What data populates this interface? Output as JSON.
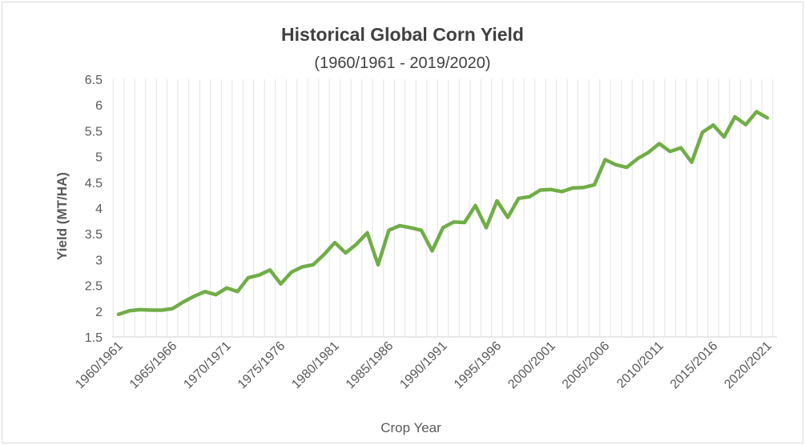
{
  "chart_data": {
    "type": "line",
    "title": "Historical Global Corn Yield",
    "subtitle": "(1960/1961 - 2019/2020)",
    "xlabel": "Crop Year",
    "ylabel": "Yield  (MT/HA)",
    "ylim": [
      1.5,
      6.5
    ],
    "yticks": [
      "1.5",
      "2",
      "2.5",
      "3",
      "3.5",
      "4",
      "4.5",
      "5",
      "5.5",
      "6",
      "6.5"
    ],
    "xticks": [
      "1960/1961",
      "1965/1966",
      "1970/1971",
      "1975/1976",
      "1980/1981",
      "1985/1986",
      "1990/1991",
      "1995/1996",
      "2000/2001",
      "2005/2006",
      "2010/2011",
      "2015/2016",
      "2020/2021"
    ],
    "grid": "vertical",
    "line_color": "#70ad47",
    "series": [
      {
        "x": [
          "1960/1961",
          "1961/1962",
          "1962/1963",
          "1963/1964",
          "1964/1965",
          "1965/1966",
          "1966/1967",
          "1967/1968",
          "1968/1969",
          "1969/1970",
          "1970/1971",
          "1971/1972",
          "1972/1973",
          "1973/1974",
          "1974/1975",
          "1975/1976",
          "1976/1977",
          "1977/1978",
          "1978/1979",
          "1979/1980",
          "1980/1981",
          "1981/1982",
          "1982/1983",
          "1983/1984",
          "1984/1985",
          "1985/1986",
          "1986/1987",
          "1987/1988",
          "1988/1989",
          "1989/1990",
          "1990/1991",
          "1991/1992",
          "1992/1993",
          "1993/1994",
          "1994/1995",
          "1995/1996",
          "1996/1997",
          "1997/1998",
          "1998/1999",
          "1999/2000",
          "2000/2001",
          "2001/2002",
          "2002/2003",
          "2003/2004",
          "2004/2005",
          "2005/2006",
          "2006/2007",
          "2007/2008",
          "2008/2009",
          "2009/2010",
          "2010/2011",
          "2011/2012",
          "2012/2013",
          "2013/2014",
          "2014/2015",
          "2015/2016",
          "2016/2017",
          "2017/2018",
          "2018/2019",
          "2019/2020",
          "2020/2021"
        ],
        "values": [
          1.94,
          2.01,
          2.03,
          2.02,
          2.02,
          2.05,
          2.18,
          2.29,
          2.38,
          2.32,
          2.45,
          2.38,
          2.65,
          2.7,
          2.8,
          2.53,
          2.76,
          2.86,
          2.9,
          3.1,
          3.33,
          3.13,
          3.3,
          3.52,
          2.9,
          3.57,
          3.66,
          3.62,
          3.57,
          3.17,
          3.62,
          3.73,
          3.72,
          4.05,
          3.62,
          4.14,
          3.82,
          4.19,
          4.22,
          4.35,
          4.36,
          4.32,
          4.39,
          4.4,
          4.45,
          4.94,
          4.84,
          4.79,
          4.96,
          5.08,
          5.25,
          5.1,
          5.17,
          4.89,
          5.47,
          5.61,
          5.38,
          5.77,
          5.62,
          5.87,
          5.75
        ]
      }
    ]
  }
}
